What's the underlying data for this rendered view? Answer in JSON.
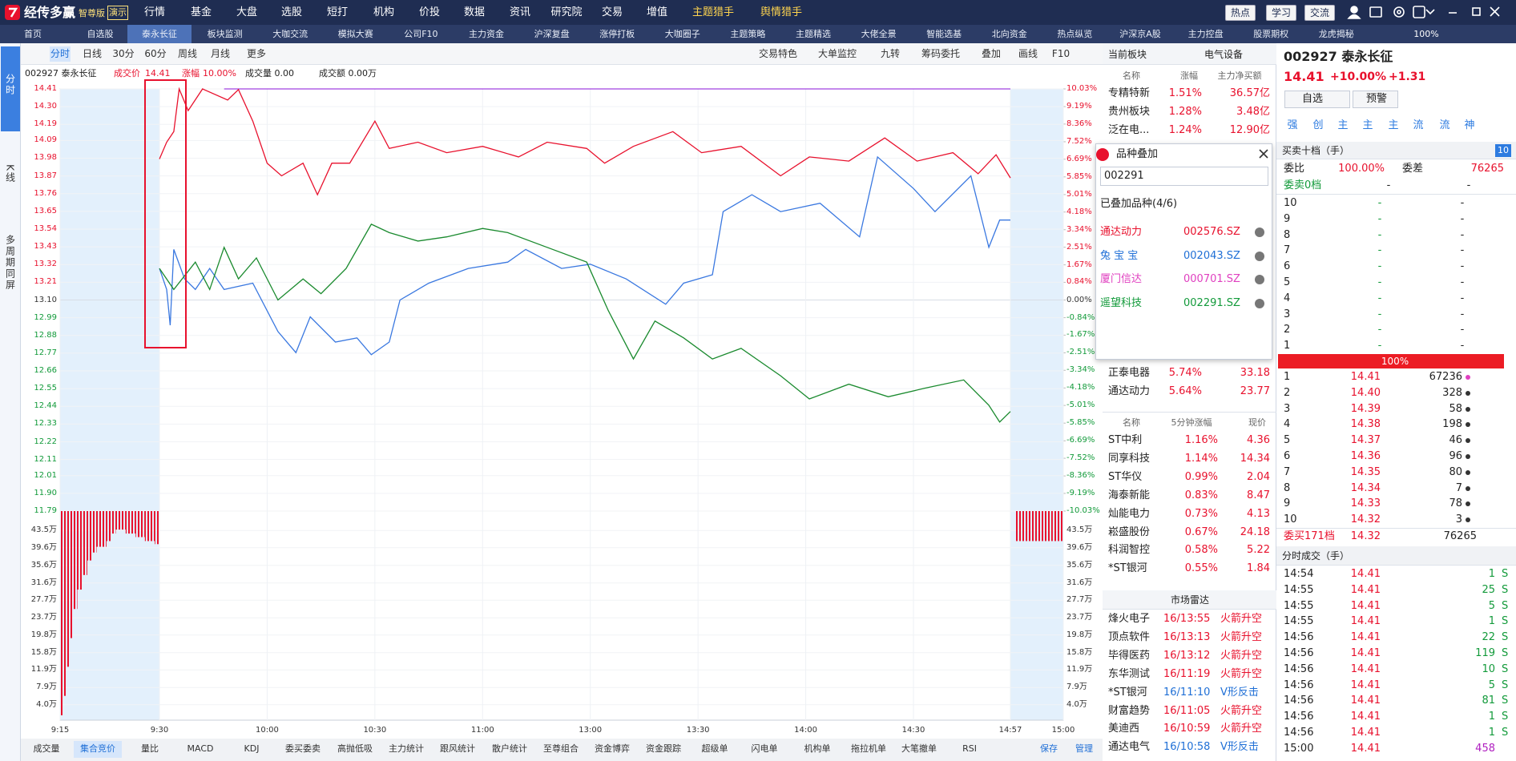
{
  "app": {
    "brand": "经传多赢",
    "edition": "智尊版",
    "demo": "演示",
    "menu": [
      "行情",
      "基金",
      "大盘",
      "选股",
      "短打",
      "机构",
      "价投",
      "数据",
      "资讯",
      "研究院",
      "交易",
      "增值",
      "主题猎手",
      "舆情猎手"
    ],
    "right_buttons": [
      "热点",
      "学习",
      "交流"
    ],
    "tabs": [
      "首页",
      "自选股",
      "泰永长征",
      "板块监测",
      "大咖交流",
      "模拟大赛",
      "公司F10",
      "主力资金",
      "沪深复盘",
      "涨停打板",
      "大咖圈子",
      "主题策略",
      "主题精选",
      "大佬全景",
      "智能选基",
      "北向资金",
      "热点纵览",
      "沪深京A股",
      "主力控盘",
      "股票期权",
      "龙虎揭秘"
    ],
    "zoom": "100%"
  },
  "left_tabs": [
    "分时",
    "K线",
    "多周期同屏"
  ],
  "toolbar": {
    "left": [
      "分时",
      "日线",
      "30分",
      "60分",
      "周线",
      "月线",
      "更多"
    ],
    "right": [
      "交易特色",
      "大单监控",
      "九转",
      "筹码委托",
      "叠加",
      "画线",
      "F10"
    ]
  },
  "info": {
    "stock": "002927 泰永长征",
    "price_label": "成交价",
    "price": "14.41",
    "change_label": "涨幅",
    "change": "10.00%",
    "volume": "成交量 0.00",
    "amount": "成交额 0.00万"
  },
  "chart_data": {
    "type": "line",
    "xlim": [
      -15,
      240
    ],
    "xticks": [
      {
        "value": -15,
        "label": "9:15"
      },
      {
        "value": 0,
        "label": "9:30"
      },
      {
        "value": 30,
        "label": "10:00"
      },
      {
        "value": 60,
        "label": "10:30"
      },
      {
        "value": 90,
        "label": "11:00"
      },
      {
        "value": 120,
        "label": "13:00"
      },
      {
        "value": 150,
        "label": "13:30"
      },
      {
        "value": 180,
        "label": "14:00"
      },
      {
        "value": 210,
        "label": "14:30"
      },
      {
        "value": 237,
        "label": "14:57"
      },
      {
        "value": 240,
        "label": "15:00"
      }
    ],
    "ylim": [
      11.79,
      14.41
    ],
    "yticks": [
      14.41,
      {
        "value": 14.3,
        "label": "14.30"
      },
      14.19,
      14.09,
      13.98,
      13.87,
      13.76,
      13.65,
      13.54,
      13.43,
      13.32,
      13.21,
      {
        "value": 13.1,
        "label": "13.10"
      },
      12.99,
      12.88,
      12.77,
      12.66,
      12.55,
      12.44,
      12.33,
      12.22,
      12.11,
      12.01,
      {
        "value": 11.9,
        "label": "11.90"
      },
      11.79
    ],
    "y2lim": [
      -10.03,
      10.03
    ],
    "y2ticks": [
      {
        "value": 10.03,
        "label": "10.03%"
      },
      {
        "value": 9.19,
        "label": "9.19%"
      },
      {
        "value": 8.36,
        "label": "8.36%"
      },
      {
        "value": 7.52,
        "label": "7.52%"
      },
      {
        "value": 6.69,
        "label": "6.69%"
      },
      {
        "value": 5.85,
        "label": "5.85%"
      },
      {
        "value": 5.01,
        "label": "5.01%"
      },
      {
        "value": 4.18,
        "label": "4.18%"
      },
      {
        "value": 3.34,
        "label": "3.34%"
      },
      {
        "value": 2.51,
        "label": "2.51%"
      },
      {
        "value": 1.67,
        "label": "1.67%"
      },
      {
        "value": 0.84,
        "label": "0.84%"
      },
      {
        "value": 0,
        "label": "0.00%"
      },
      {
        "value": -0.84,
        "label": "-0.84%"
      },
      {
        "value": -1.67,
        "label": "-1.67%"
      },
      {
        "value": -2.51,
        "label": "-2.51%"
      },
      {
        "value": -3.34,
        "label": "-3.34%"
      },
      {
        "value": -4.18,
        "label": "-4.18%"
      },
      {
        "value": -5.01,
        "label": "-5.01%"
      },
      {
        "value": -5.85,
        "label": "-5.85%"
      },
      {
        "value": -6.69,
        "label": "-6.69%"
      },
      {
        "value": -7.52,
        "label": "-7.52%"
      },
      {
        "value": -8.36,
        "label": "-8.36%"
      },
      {
        "value": -9.19,
        "label": "-9.19%"
      },
      {
        "value": -10.03,
        "label": "-10.03%"
      }
    ],
    "grid": true,
    "series": [
      {
        "color": "#a040e0",
        "x": [
          18,
          237
        ],
        "values": [
          14.41,
          14.41
        ]
      },
      {
        "color": "#e8112d",
        "axis": "y2",
        "x": [
          0,
          2,
          4,
          5.5,
          8,
          12,
          19,
          22,
          26,
          30,
          34,
          40,
          44,
          48,
          53,
          60,
          64,
          72,
          80,
          90,
          100,
          108,
          119,
          124,
          132,
          143,
          151,
          162,
          173,
          181,
          192,
          202,
          211,
          221,
          228,
          233,
          237
        ],
        "values": [
          6.7,
          7.5,
          8.0,
          10.03,
          9.0,
          10.03,
          9.5,
          10.0,
          8.5,
          6.5,
          5.9,
          6.5,
          5.0,
          6.5,
          6.5,
          8.5,
          7.2,
          7.5,
          7.0,
          7.3,
          6.8,
          7.5,
          7.2,
          6.5,
          7.3,
          8.0,
          7.0,
          7.3,
          5.9,
          6.8,
          6.6,
          7.7,
          6.6,
          7.0,
          6.0,
          6.9,
          5.8
        ]
      },
      {
        "color": "#3a78e0",
        "axis": "y2",
        "x": [
          0,
          2,
          3,
          4,
          7,
          10,
          14,
          18,
          26,
          33,
          38,
          42,
          49,
          55,
          59,
          64,
          67,
          75,
          86,
          97,
          102,
          112,
          120,
          130,
          141,
          146,
          154,
          157,
          165,
          173,
          184,
          195,
          200,
          210,
          216,
          226,
          231,
          234,
          237
        ],
        "values": [
          1.5,
          0.5,
          -1.2,
          2.4,
          1.0,
          0.5,
          1.5,
          0.5,
          0.8,
          -1.5,
          -2.5,
          -0.8,
          -2.0,
          -1.8,
          -2.6,
          -2.0,
          0.0,
          0.8,
          1.5,
          1.8,
          2.4,
          1.5,
          1.7,
          1.0,
          -0.2,
          0.8,
          1.2,
          4.2,
          5.0,
          4.2,
          4.6,
          3.0,
          6.8,
          5.3,
          4.2,
          5.9,
          2.5,
          3.8,
          3.8
        ]
      },
      {
        "color": "#1a8a2e",
        "axis": "y2",
        "x": [
          0,
          4,
          10,
          14,
          18,
          22,
          27,
          33,
          40,
          45,
          52,
          59,
          64,
          72,
          80,
          90,
          97,
          108,
          119,
          125,
          132,
          138,
          146,
          154,
          162,
          173,
          181,
          192,
          203,
          213,
          224,
          231,
          234,
          237
        ],
        "values": [
          1.5,
          0.5,
          1.8,
          0.5,
          2.5,
          1.0,
          2.0,
          0.0,
          1.0,
          0.3,
          1.5,
          3.6,
          3.2,
          2.8,
          3.0,
          3.4,
          3.2,
          2.5,
          1.8,
          -0.5,
          -2.8,
          -1.0,
          -1.8,
          -2.8,
          -2.3,
          -3.6,
          -4.7,
          -4.0,
          -4.6,
          -4.2,
          -3.8,
          -5.0,
          -5.8,
          -5.3
        ]
      }
    ],
    "volume": {
      "color": "#e8112d",
      "ylim": [
        0.5,
        47.9
      ],
      "yticks": [
        {
          "value": 43.5,
          "label": "43.5万"
        },
        {
          "value": 39.6,
          "label": "39.6万"
        },
        {
          "value": 35.6,
          "label": "35.6万"
        },
        {
          "value": 31.6,
          "label": "31.6万"
        },
        {
          "value": 27.7,
          "label": "27.7万"
        },
        {
          "value": 23.7,
          "label": "23.7万"
        },
        {
          "value": 19.8,
          "label": "19.8万"
        },
        {
          "value": 15.8,
          "label": "15.8万"
        },
        {
          "value": 11.9,
          "label": "11.9万"
        },
        {
          "value": 7.9,
          "label": "7.9万"
        },
        {
          "value": 4.0,
          "label": "4.0万"
        }
      ],
      "auction": {
        "x": [
          -14.9,
          -14.6,
          -14.1,
          -13.5,
          -13,
          -12.4,
          -11.7,
          -10.9,
          -10.2,
          -9.5,
          -8,
          -7.3,
          -6.6,
          -5.1,
          -3.6,
          -2.2,
          -0.7
        ],
        "values": [
          1.6,
          6.0,
          12.6,
          19.1,
          25.7,
          30.1,
          33.4,
          36.7,
          38.5,
          39.8,
          41.1,
          42.8,
          43.7,
          42.8,
          42.0,
          41.1,
          40.4
        ]
      },
      "closing": {
        "x": [
          237.3,
          237.6,
          237.9,
          238.2,
          238.5,
          238.8,
          239.1,
          239.4,
          239.7
        ],
        "values": [
          41.1,
          41.1,
          41.1,
          41.1,
          41.1,
          41.1,
          41.1,
          41.1,
          41.1
        ]
      }
    }
  },
  "bottom_tabs": [
    "成交量",
    "集合竞价",
    "量比",
    "MACD",
    "KDJ",
    "委买委卖",
    "高抛低吸",
    "主力统计",
    "跟风统计",
    "散户统计",
    "至尊组合",
    "资金博弈",
    "资金跟踪",
    "超级单",
    "闪电单",
    "机构单",
    "拖拉机单",
    "大笔撤单",
    "RSI"
  ],
  "bottom_right": [
    "保存",
    "管理"
  ],
  "sector_panel": {
    "title": "当前板块",
    "sector": "电气设备",
    "headers": [
      "名称",
      "涨幅",
      "主力净买额"
    ],
    "rows": [
      [
        "专精特新",
        "1.51%",
        "36.57亿"
      ],
      [
        "贵州板块",
        "1.28%",
        "3.48亿"
      ],
      [
        "泛在电...",
        "1.24%",
        "12.90亿"
      ]
    ],
    "more_rows": [
      [
        "正泰电器",
        "5.74%",
        "33.18"
      ],
      [
        "通达动力",
        "5.64%",
        "23.77"
      ]
    ]
  },
  "overlay_popup": {
    "title": "品种叠加",
    "input": "002291",
    "added": "已叠加品种(4/6)",
    "items": [
      {
        "name": "通达动力",
        "code": "002576.SZ",
        "color": "#e8112d"
      },
      {
        "name": "兔 宝 宝",
        "code": "002043.SZ",
        "color": "#1f6fd6"
      },
      {
        "name": "厦门信达",
        "code": "000701.SZ",
        "color": "#e040c0"
      },
      {
        "name": "遥望科技",
        "code": "002291.SZ",
        "color": "#129a3a"
      }
    ]
  },
  "speed_panel": {
    "headers": [
      "名称",
      "5分钟涨幅",
      "现价"
    ],
    "rows": [
      [
        "ST中利",
        "1.16%",
        "4.36"
      ],
      [
        "同享科技",
        "1.14%",
        "14.34"
      ],
      [
        "ST华仪",
        "0.99%",
        "2.04"
      ],
      [
        "海泰新能",
        "0.83%",
        "8.47"
      ],
      [
        "灿能电力",
        "0.73%",
        "4.13"
      ],
      [
        "崧盛股份",
        "0.67%",
        "24.18"
      ],
      [
        "科润智控",
        "0.58%",
        "5.22"
      ],
      [
        "*ST银河",
        "0.55%",
        "1.84"
      ]
    ]
  },
  "radar": {
    "title": "市场雷达",
    "rows": [
      {
        "name": "烽火电子",
        "time": "16/13:55",
        "event": "火箭升空",
        "color": "#e8112d"
      },
      {
        "name": "顶点软件",
        "time": "16/13:13",
        "event": "火箭升空",
        "color": "#e8112d"
      },
      {
        "name": "毕得医药",
        "time": "16/13:12",
        "event": "火箭升空",
        "color": "#e8112d"
      },
      {
        "name": "东华测试",
        "time": "16/11:19",
        "event": "火箭升空",
        "color": "#e8112d"
      },
      {
        "name": "*ST银河",
        "time": "16/11:10",
        "event": "V形反击",
        "color": "#1f6fd6"
      },
      {
        "name": "财富趋势",
        "time": "16/11:05",
        "event": "火箭升空",
        "color": "#e8112d"
      },
      {
        "name": "美迪西",
        "time": "16/10:59",
        "event": "火箭升空",
        "color": "#e8112d"
      },
      {
        "name": "通达电气",
        "time": "16/10:58",
        "event": "V形反击",
        "color": "#1f6fd6"
      }
    ]
  },
  "quote": {
    "title": "002927 泰永长征",
    "price": "14.41",
    "change_pct": "+10.00%",
    "change": "+1.31",
    "add": "自选",
    "alert": "预警",
    "icons": [
      "强",
      "创",
      "主",
      "主",
      "主",
      "流",
      "流",
      "神"
    ]
  },
  "order_book": {
    "title": "买卖十档（手）",
    "levels": "10",
    "ratio_label": "委比",
    "ratio": "100.00%",
    "diff_label": "委差",
    "diff": "76265",
    "sell_summary": [
      "委卖0档",
      "-",
      "-"
    ],
    "sell": [
      [
        "10",
        "-",
        "-"
      ],
      [
        "9",
        "-",
        "-"
      ],
      [
        "8",
        "-",
        "-"
      ],
      [
        "7",
        "-",
        "-"
      ],
      [
        "6",
        "-",
        "-"
      ],
      [
        "5",
        "-",
        "-"
      ],
      [
        "4",
        "-",
        "-"
      ],
      [
        "3",
        "-",
        "-"
      ],
      [
        "2",
        "-",
        "-"
      ],
      [
        "1",
        "-",
        "-"
      ]
    ],
    "bar": "100%",
    "buy": [
      [
        "1",
        "14.41",
        "67236"
      ],
      [
        "2",
        "14.40",
        "328"
      ],
      [
        "3",
        "14.39",
        "58"
      ],
      [
        "4",
        "14.38",
        "198"
      ],
      [
        "5",
        "14.37",
        "46"
      ],
      [
        "6",
        "14.36",
        "96"
      ],
      [
        "7",
        "14.35",
        "80"
      ],
      [
        "8",
        "14.34",
        "7"
      ],
      [
        "9",
        "14.33",
        "78"
      ],
      [
        "10",
        "14.32",
        "3"
      ]
    ],
    "buy_summary": [
      "委买171档",
      "14.32",
      "76265"
    ]
  },
  "trades": {
    "title": "分时成交（手）",
    "rows": [
      [
        "14:54",
        "14.41",
        "1",
        "S"
      ],
      [
        "14:55",
        "14.41",
        "25",
        "S"
      ],
      [
        "14:55",
        "14.41",
        "5",
        "S"
      ],
      [
        "14:55",
        "14.41",
        "1",
        "S"
      ],
      [
        "14:56",
        "14.41",
        "22",
        "S"
      ],
      [
        "14:56",
        "14.41",
        "119",
        "S"
      ],
      [
        "14:56",
        "14.41",
        "10",
        "S"
      ],
      [
        "14:56",
        "14.41",
        "5",
        "S"
      ],
      [
        "14:56",
        "14.41",
        "81",
        "S"
      ],
      [
        "14:56",
        "14.41",
        "1",
        "S"
      ],
      [
        "14:56",
        "14.41",
        "1",
        "S"
      ],
      [
        "15:00",
        "14.41",
        "458",
        null
      ]
    ]
  }
}
